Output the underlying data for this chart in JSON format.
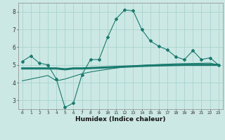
{
  "x": [
    0,
    1,
    2,
    3,
    4,
    5,
    6,
    7,
    8,
    9,
    10,
    11,
    12,
    13,
    14,
    15,
    16,
    17,
    18,
    19,
    20,
    21,
    22,
    23
  ],
  "line1": [
    5.2,
    5.5,
    5.1,
    5.0,
    4.2,
    2.6,
    2.85,
    4.45,
    5.3,
    5.3,
    6.55,
    7.6,
    8.1,
    8.05,
    7.0,
    6.35,
    6.05,
    5.85,
    5.45,
    5.3,
    5.8,
    5.3,
    5.4,
    5.0
  ],
  "line2": [
    4.8,
    4.8,
    4.8,
    4.8,
    4.8,
    4.75,
    4.8,
    4.8,
    4.82,
    4.84,
    4.86,
    4.88,
    4.9,
    4.92,
    4.94,
    4.96,
    4.97,
    4.98,
    4.99,
    5.0,
    5.0,
    5.0,
    5.0,
    5.0
  ],
  "line3": [
    4.1,
    4.2,
    4.3,
    4.4,
    4.1,
    4.2,
    4.35,
    4.5,
    4.6,
    4.68,
    4.75,
    4.82,
    4.88,
    4.94,
    4.97,
    5.0,
    5.02,
    5.04,
    5.06,
    5.07,
    5.08,
    5.09,
    5.1,
    5.0
  ],
  "line_color": "#1a7a6e",
  "bg_color": "#cce8e4",
  "grid_color": "#a8d4cf",
  "xlabel": "Humidex (Indice chaleur)",
  "ylim": [
    2.5,
    8.5
  ],
  "xlim": [
    -0.5,
    23.5
  ],
  "yticks": [
    3,
    4,
    5,
    6,
    7,
    8
  ],
  "xticks": [
    0,
    1,
    2,
    3,
    4,
    5,
    6,
    7,
    8,
    9,
    10,
    11,
    12,
    13,
    14,
    15,
    16,
    17,
    18,
    19,
    20,
    21,
    22,
    23
  ]
}
